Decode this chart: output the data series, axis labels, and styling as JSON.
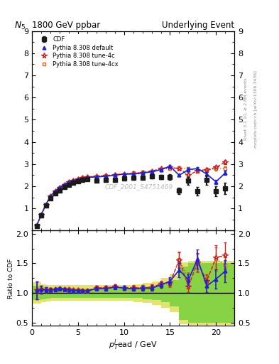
{
  "title_left": "1800 GeV ppbar",
  "title_right": "Underlying Event",
  "ylabel_main": "$N_5$",
  "ylabel_ratio": "Ratio to CDF",
  "xlabel": "$p_T^{l}$ead / GeV",
  "right_label_top": "Rivet 3.1.10, ≥ 2.8M events",
  "right_label_bot": "mcplots.cern.ch [arXiv:1306.3436]",
  "watermark": "CDF_2001_S4751469",
  "cdf_x": [
    0.5,
    1.0,
    1.5,
    2.0,
    2.5,
    3.0,
    3.5,
    4.0,
    4.5,
    5.0,
    5.5,
    6.0,
    7.0,
    8.0,
    9.0,
    10.0,
    11.0,
    12.0,
    13.0,
    14.0,
    15.0,
    16.0,
    17.0,
    18.0,
    19.0,
    20.0,
    21.0
  ],
  "cdf_y": [
    0.22,
    0.68,
    1.12,
    1.47,
    1.68,
    1.82,
    1.96,
    2.07,
    2.16,
    2.22,
    2.28,
    2.32,
    2.25,
    2.28,
    2.28,
    2.35,
    2.38,
    2.4,
    2.45,
    2.42,
    2.42,
    1.8,
    2.25,
    1.78,
    2.28,
    1.78,
    1.9
  ],
  "cdf_yerr": [
    0.03,
    0.04,
    0.04,
    0.04,
    0.04,
    0.04,
    0.04,
    0.04,
    0.04,
    0.04,
    0.05,
    0.05,
    0.06,
    0.06,
    0.07,
    0.07,
    0.08,
    0.09,
    0.1,
    0.1,
    0.12,
    0.15,
    0.18,
    0.18,
    0.2,
    0.22,
    0.25
  ],
  "py_def_x": [
    0.5,
    1.0,
    1.5,
    2.0,
    2.5,
    3.0,
    3.5,
    4.0,
    4.5,
    5.0,
    5.5,
    6.0,
    7.0,
    8.0,
    9.0,
    10.0,
    11.0,
    12.0,
    13.0,
    14.0,
    15.0,
    16.0,
    17.0,
    18.0,
    19.0,
    20.0,
    21.0
  ],
  "py_def_y": [
    0.23,
    0.72,
    1.18,
    1.55,
    1.78,
    1.95,
    2.08,
    2.18,
    2.25,
    2.31,
    2.36,
    2.4,
    2.42,
    2.45,
    2.5,
    2.55,
    2.55,
    2.6,
    2.65,
    2.75,
    2.9,
    2.5,
    2.75,
    2.8,
    2.55,
    2.2,
    2.6
  ],
  "py_def_yerr": [
    0.01,
    0.02,
    0.02,
    0.02,
    0.02,
    0.02,
    0.02,
    0.02,
    0.02,
    0.02,
    0.02,
    0.02,
    0.02,
    0.03,
    0.03,
    0.03,
    0.03,
    0.03,
    0.04,
    0.04,
    0.05,
    0.06,
    0.07,
    0.07,
    0.08,
    0.09,
    0.1
  ],
  "py_4c_x": [
    0.5,
    1.0,
    1.5,
    2.0,
    2.5,
    3.0,
    3.5,
    4.0,
    4.5,
    5.0,
    5.5,
    6.0,
    7.0,
    8.0,
    9.0,
    10.0,
    11.0,
    12.0,
    13.0,
    14.0,
    15.0,
    16.0,
    17.0,
    18.0,
    19.0,
    20.0,
    21.0
  ],
  "py_4c_y": [
    0.23,
    0.72,
    1.18,
    1.55,
    1.78,
    1.95,
    2.08,
    2.2,
    2.27,
    2.33,
    2.38,
    2.42,
    2.45,
    2.48,
    2.52,
    2.56,
    2.58,
    2.62,
    2.68,
    2.8,
    2.85,
    2.8,
    2.5,
    2.7,
    2.75,
    2.85,
    3.1
  ],
  "py_4c_yerr": [
    0.01,
    0.02,
    0.02,
    0.02,
    0.02,
    0.02,
    0.02,
    0.02,
    0.02,
    0.02,
    0.02,
    0.02,
    0.02,
    0.03,
    0.03,
    0.03,
    0.03,
    0.03,
    0.04,
    0.04,
    0.05,
    0.06,
    0.07,
    0.07,
    0.08,
    0.09,
    0.1
  ],
  "py_4cx_x": [
    0.5,
    1.0,
    1.5,
    2.0,
    2.5,
    3.0,
    3.5,
    4.0,
    4.5,
    5.0,
    5.5,
    6.0,
    7.0,
    8.0,
    9.0,
    10.0,
    11.0,
    12.0,
    13.0,
    14.0,
    15.0,
    16.0,
    17.0,
    18.0,
    19.0,
    20.0,
    21.0
  ],
  "py_4cx_y": [
    0.23,
    0.72,
    1.18,
    1.55,
    1.78,
    1.95,
    2.08,
    2.2,
    2.27,
    2.33,
    2.38,
    2.42,
    2.45,
    2.48,
    2.52,
    2.56,
    2.6,
    2.63,
    2.68,
    2.78,
    2.8,
    2.82,
    2.8,
    2.68,
    2.72,
    2.8,
    2.8
  ],
  "py_4cx_yerr": [
    0.01,
    0.02,
    0.02,
    0.02,
    0.02,
    0.02,
    0.02,
    0.02,
    0.02,
    0.02,
    0.02,
    0.02,
    0.02,
    0.03,
    0.03,
    0.03,
    0.03,
    0.03,
    0.04,
    0.04,
    0.05,
    0.06,
    0.07,
    0.07,
    0.08,
    0.09,
    0.1
  ],
  "ylim_main": [
    0,
    9
  ],
  "ylim_ratio": [
    0.45,
    2.05
  ],
  "xlim": [
    0,
    22
  ],
  "yticks_main": [
    0,
    1,
    2,
    3,
    4,
    5,
    6,
    7,
    8,
    9
  ],
  "yticks_ratio": [
    0.5,
    1.0,
    1.5,
    2.0
  ],
  "xticks": [
    0,
    5,
    10,
    15,
    20
  ],
  "color_cdf": "#1a1a1a",
  "color_def": "#2222cc",
  "color_4c": "#cc2222",
  "color_4cx": "#cc6622",
  "green_color": "#00bb00",
  "yellow_color": "#cccc00",
  "green_alpha": 0.4,
  "yellow_alpha": 0.55,
  "band_edges": [
    0.0,
    0.5,
    1.0,
    1.5,
    2.0,
    2.5,
    3.0,
    3.5,
    4.0,
    4.5,
    5.0,
    5.5,
    6.0,
    7.0,
    8.0,
    9.0,
    10.0,
    11.0,
    12.0,
    13.0,
    14.0,
    15.0,
    16.0,
    17.0,
    18.0,
    19.0,
    20.0,
    21.0,
    22.0
  ],
  "green_lo": [
    0.88,
    0.88,
    0.9,
    0.91,
    0.92,
    0.92,
    0.92,
    0.92,
    0.92,
    0.92,
    0.92,
    0.92,
    0.92,
    0.92,
    0.92,
    0.92,
    0.92,
    0.92,
    0.9,
    0.88,
    0.85,
    0.78,
    0.55,
    0.5,
    0.5,
    0.5,
    0.5,
    0.5,
    0.5
  ],
  "green_hi": [
    1.12,
    1.12,
    1.1,
    1.09,
    1.08,
    1.08,
    1.08,
    1.08,
    1.08,
    1.08,
    1.08,
    1.08,
    1.08,
    1.08,
    1.08,
    1.08,
    1.08,
    1.08,
    1.1,
    1.12,
    1.15,
    1.22,
    1.45,
    1.5,
    1.5,
    1.5,
    1.5,
    1.5,
    1.5
  ],
  "yellow_lo": [
    0.82,
    0.82,
    0.85,
    0.86,
    0.87,
    0.87,
    0.87,
    0.87,
    0.87,
    0.87,
    0.87,
    0.87,
    0.87,
    0.87,
    0.87,
    0.87,
    0.87,
    0.85,
    0.83,
    0.8,
    0.75,
    0.68,
    0.48,
    0.46,
    0.46,
    0.46,
    0.46,
    0.46,
    0.46
  ],
  "yellow_hi": [
    1.18,
    1.18,
    1.15,
    1.14,
    1.13,
    1.13,
    1.13,
    1.13,
    1.13,
    1.13,
    1.13,
    1.13,
    1.13,
    1.13,
    1.13,
    1.13,
    1.13,
    1.15,
    1.17,
    1.2,
    1.25,
    1.32,
    1.52,
    1.54,
    1.54,
    1.54,
    1.54,
    1.54,
    1.54
  ]
}
